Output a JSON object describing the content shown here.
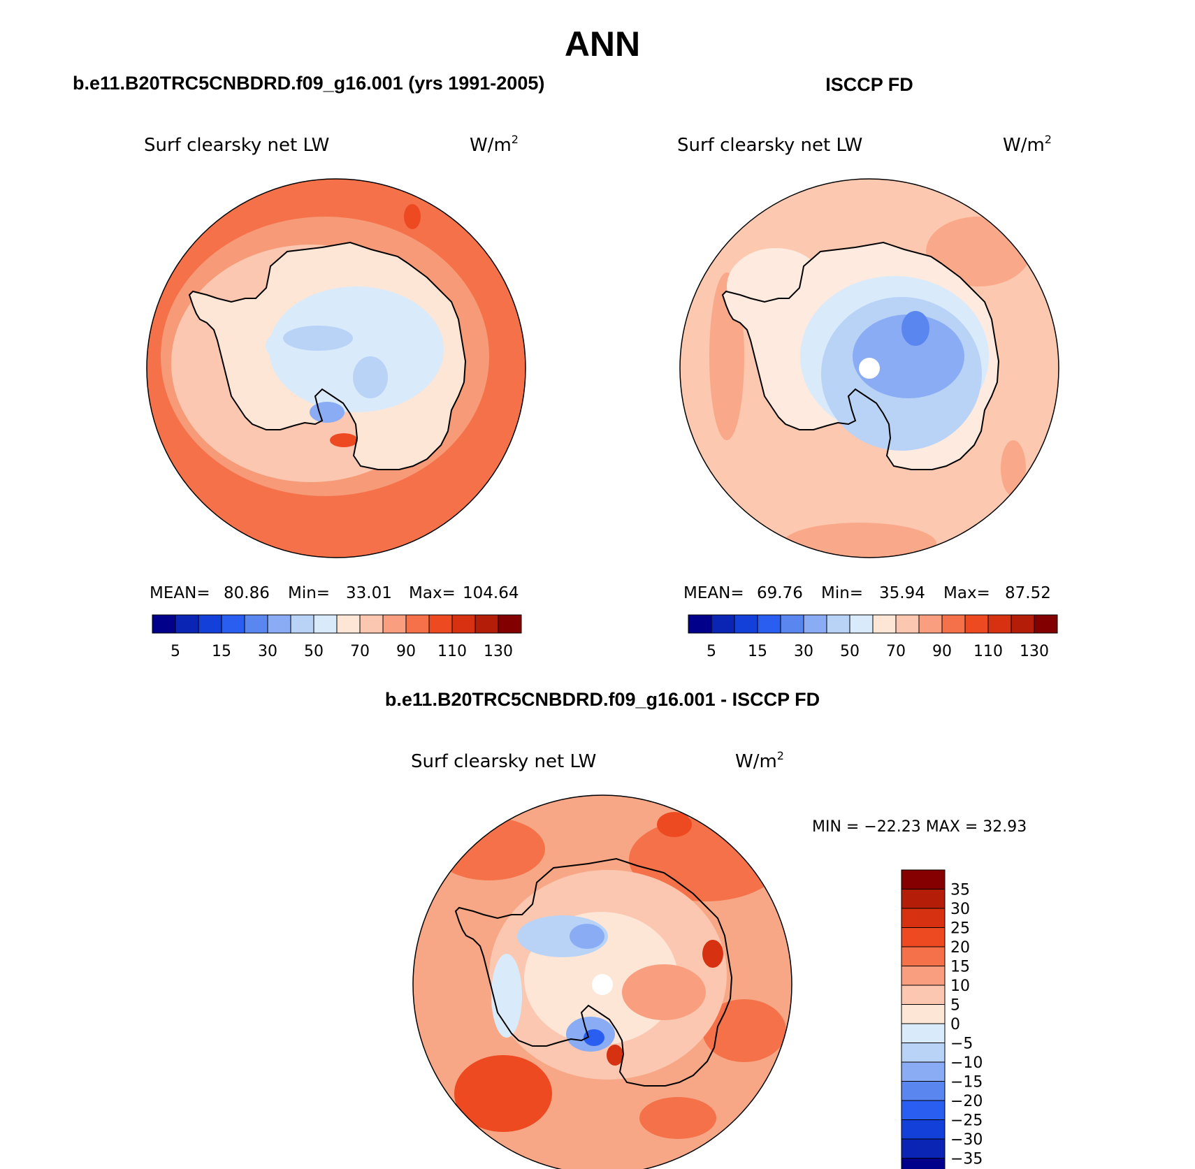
{
  "page": {
    "title": "ANN",
    "bottom_title": "b.e11.B20TRC5CNBDRD.f09_g16.001 - ISCCP FD"
  },
  "panels": [
    {
      "header": "b.e11.B20TRC5CNBDRD.f09_g16.001 (yrs 1991-2005)",
      "variable": "Surf clearsky net LW",
      "units": "W/m",
      "units_sup": "2",
      "stats": {
        "mean_label": "MEAN=",
        "mean": "80.86",
        "min_label": "Min=",
        "min": "33.01",
        "max_label": "Max=",
        "max": "104.64"
      },
      "ocean_color": "#f4714a",
      "ring_color": "#f79a77",
      "coast_color": "#fdd6c1",
      "interior_color": "#d7e9fb",
      "show_pole_hole": false
    },
    {
      "header": "ISCCP FD",
      "variable": "Surf clearsky net LW",
      "units": "W/m",
      "units_sup": "2",
      "stats": {
        "mean_label": "MEAN=",
        "mean": "69.76",
        "min_label": "Min=",
        "min": "35.94",
        "max_label": "Max=",
        "max": "87.52"
      },
      "ocean_color": "#fcc9b0",
      "ring_color": "#fcc9b0",
      "coast_color": "#feeade",
      "interior_color": "#b8d3f7",
      "show_pole_hole": true
    }
  ],
  "colorbar_abs": {
    "colors": [
      "#00008b",
      "#0a25b3",
      "#1340d9",
      "#2a5ef0",
      "#5a86f0",
      "#8aacf4",
      "#b9d3f7",
      "#d9eafb",
      "#fde6d6",
      "#fcc7b0",
      "#f99f80",
      "#f4714a",
      "#ee4a22",
      "#d63212",
      "#b41e08",
      "#820000"
    ],
    "tick_labels": [
      "5",
      "15",
      "30",
      "50",
      "70",
      "90",
      "110",
      "130"
    ]
  },
  "diff_panel": {
    "variable": "Surf clearsky net LW",
    "units": "W/m",
    "units_sup": "2",
    "minmax_text": "MIN = −22.23  MAX =   32.93",
    "ocean_color": "#f7a785",
    "show_pole_hole": true
  },
  "colorbar_diff": {
    "colors_top_to_bottom": [
      "#850000",
      "#b41e08",
      "#d63212",
      "#ee4a22",
      "#f4714a",
      "#f99f80",
      "#fcc7b0",
      "#fde6d6",
      "#d9eafb",
      "#b9d3f7",
      "#8aacf4",
      "#5a86f0",
      "#2a5ef0",
      "#1340d9",
      "#0a25b3",
      "#00008b"
    ],
    "tick_labels": [
      "35",
      "30",
      "25",
      "20",
      "15",
      "10",
      "5",
      "0",
      "−5",
      "−10",
      "−15",
      "−20",
      "−25",
      "−30",
      "−35"
    ]
  }
}
